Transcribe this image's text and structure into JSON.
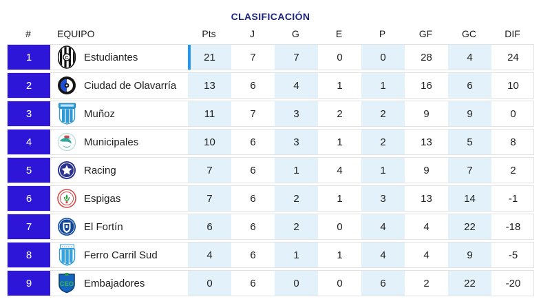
{
  "title": "CLASIFICACIÓN",
  "colors": {
    "title_text": "#1a237e",
    "position_badge": "#2e16d9",
    "leader_accent_bar": "#2196f3",
    "alt_column_bg": "#e3f2fa",
    "row_border": "#e2e2e2"
  },
  "table": {
    "headers": [
      "#",
      "EQUIPO",
      "Pts",
      "J",
      "G",
      "E",
      "P",
      "GF",
      "GC",
      "DIF"
    ],
    "rows": [
      {
        "pos": "1",
        "team": "Estudiantes",
        "logo": "estudiantes-black-white-stripes-crest",
        "leader": true,
        "stats": [
          "21",
          "7",
          "7",
          "0",
          "0",
          "28",
          "4",
          "24"
        ]
      },
      {
        "pos": "2",
        "team": "Ciudad de Olavarría",
        "logo": "olavarria-black-blue-round-crest",
        "leader": false,
        "stats": [
          "13",
          "6",
          "4",
          "1",
          "1",
          "16",
          "6",
          "10"
        ]
      },
      {
        "pos": "3",
        "team": "Muñoz",
        "logo": "munoz-lightblue-striped-shield",
        "leader": false,
        "stats": [
          "11",
          "7",
          "3",
          "2",
          "2",
          "9",
          "9",
          "0"
        ]
      },
      {
        "pos": "4",
        "team": "Municipales",
        "logo": "municipales-teal-white-crest",
        "leader": false,
        "stats": [
          "10",
          "6",
          "3",
          "1",
          "2",
          "13",
          "5",
          "8"
        ]
      },
      {
        "pos": "5",
        "team": "Racing",
        "logo": "racing-navy-star-crest",
        "leader": false,
        "stats": [
          "7",
          "6",
          "1",
          "4",
          "1",
          "9",
          "7",
          "2"
        ]
      },
      {
        "pos": "6",
        "team": "Espigas",
        "logo": "espigas-red-ring-crest",
        "leader": false,
        "stats": [
          "7",
          "6",
          "2",
          "1",
          "3",
          "13",
          "14",
          "-1"
        ]
      },
      {
        "pos": "7",
        "team": "El Fortín",
        "logo": "elfortin-blue-shield-crest",
        "leader": false,
        "stats": [
          "6",
          "6",
          "2",
          "0",
          "4",
          "4",
          "22",
          "-18"
        ]
      },
      {
        "pos": "8",
        "team": "Ferro Carril Sud",
        "logo": "ferro-lightblue-striped-shield",
        "leader": false,
        "stats": [
          "4",
          "6",
          "1",
          "1",
          "4",
          "4",
          "9",
          "-5"
        ]
      },
      {
        "pos": "9",
        "team": "Embajadores",
        "logo": "embajadores-blue-green-shield",
        "leader": false,
        "stats": [
          "0",
          "6",
          "0",
          "0",
          "6",
          "2",
          "22",
          "-20"
        ]
      }
    ]
  }
}
